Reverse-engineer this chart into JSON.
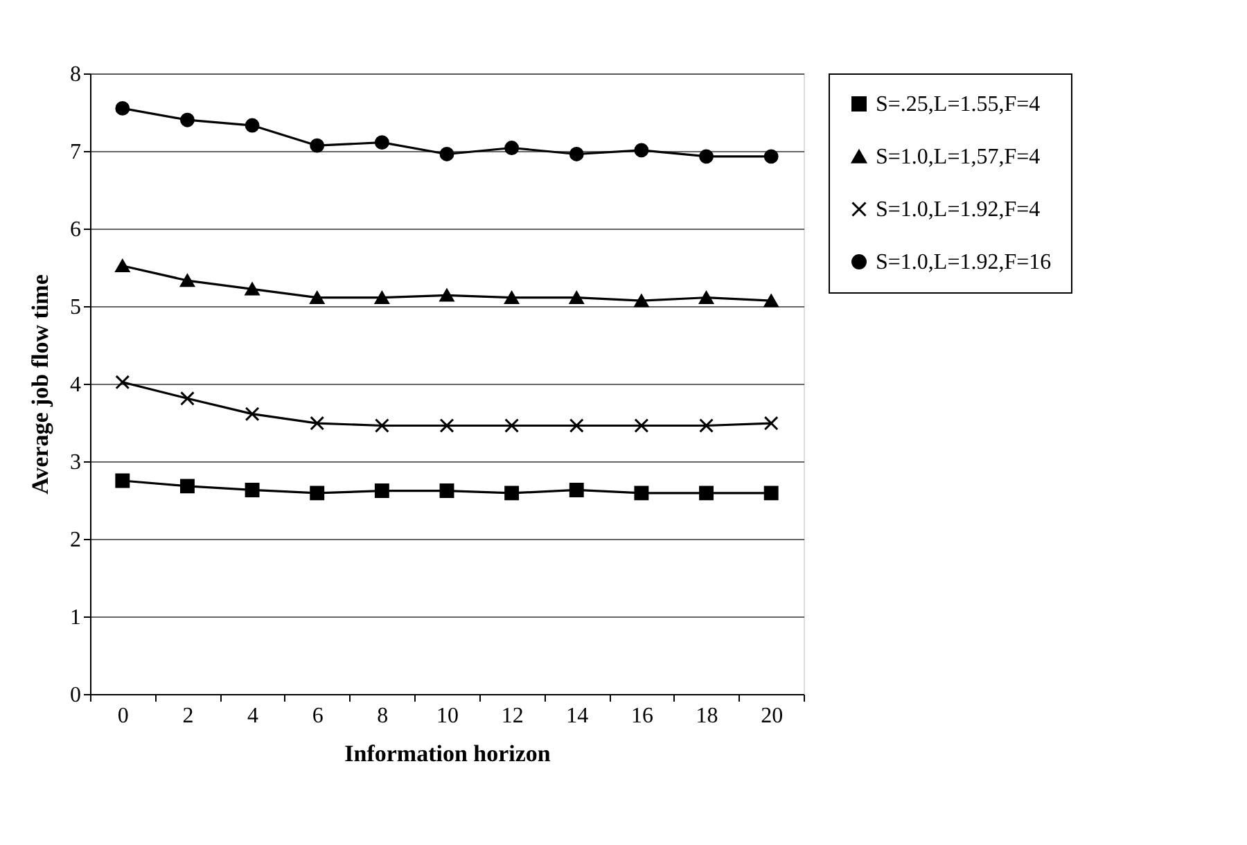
{
  "chart_data": {
    "type": "line",
    "xlabel": "Information horizon",
    "ylabel": "Average job flow time",
    "categories": [
      "0",
      "2",
      "4",
      "6",
      "8",
      "10",
      "12",
      "14",
      "16",
      "18",
      "20"
    ],
    "series": [
      {
        "name": "S=.25,L=1.55,F=4",
        "color": "#000000",
        "marker": "square",
        "values": [
          2.75,
          2.68,
          2.63,
          2.59,
          2.62,
          2.62,
          2.59,
          2.63,
          2.59,
          2.59,
          2.59
        ]
      },
      {
        "name": "S=1.0,L=1,57,F=4",
        "color": "#000000",
        "marker": "triangle",
        "values": [
          5.52,
          5.33,
          5.22,
          5.11,
          5.11,
          5.14,
          5.11,
          5.11,
          5.07,
          5.11,
          5.07
        ]
      },
      {
        "name": "S=1.0,L=1.92,F=4",
        "color": "#000000",
        "marker": "cross",
        "values": [
          4.02,
          3.81,
          3.61,
          3.49,
          3.46,
          3.46,
          3.46,
          3.46,
          3.46,
          3.46,
          3.49
        ]
      },
      {
        "name": "S=1.0,L=1.92,F=16",
        "color": "#000000",
        "marker": "circle",
        "values": [
          7.55,
          7.4,
          7.33,
          7.07,
          7.11,
          6.96,
          7.04,
          6.96,
          7.01,
          6.93,
          6.93
        ]
      }
    ],
    "ylim": [
      0,
      8.0
    ],
    "yticks": [
      0,
      1,
      2,
      3,
      4,
      5,
      6,
      7,
      8
    ],
    "grid": "y",
    "legend": "right",
    "line_style": "solid"
  }
}
